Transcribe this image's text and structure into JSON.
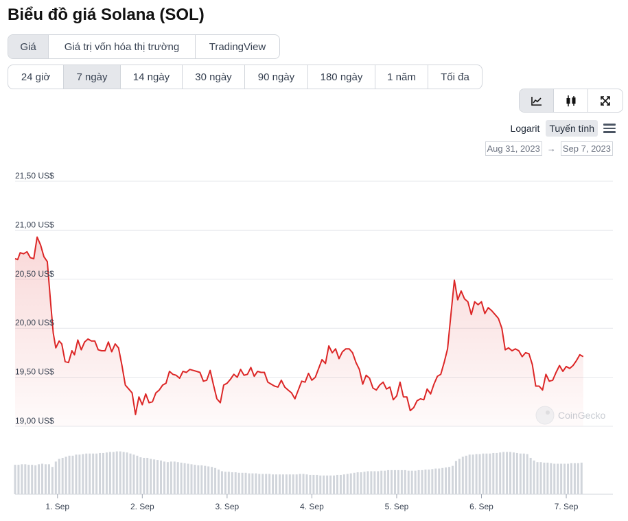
{
  "page": {
    "title": "Biểu đồ giá Solana (SOL)"
  },
  "tabs": {
    "metric": [
      {
        "label": "Giá",
        "active": true
      },
      {
        "label": "Giá trị vốn hóa thị trường",
        "active": false
      },
      {
        "label": "TradingView",
        "active": false
      }
    ],
    "range": [
      {
        "label": "24 giờ",
        "active": false
      },
      {
        "label": "7 ngày",
        "active": true
      },
      {
        "label": "14 ngày",
        "active": false
      },
      {
        "label": "30 ngày",
        "active": false
      },
      {
        "label": "90 ngày",
        "active": false
      },
      {
        "label": "180 ngày",
        "active": false
      },
      {
        "label": "1 năm",
        "active": false
      },
      {
        "label": "Tối đa",
        "active": false
      }
    ],
    "view_icons": [
      "line-chart-icon",
      "candlestick-icon",
      "expand-icon"
    ]
  },
  "scale": {
    "log_label": "Logarit",
    "linear_label": "Tuyến tính",
    "active": "linear"
  },
  "date_range": {
    "from": "Aug 31, 2023",
    "arrow": "→",
    "to": "Sep 7, 2023"
  },
  "watermark": "CoinGecko",
  "colors": {
    "line": "#dc2626",
    "volume": "#d1d5db",
    "grid": "#e5e7eb",
    "active_bg": "#e5e7eb"
  },
  "chart_data": {
    "type": "area",
    "title": "",
    "xlabel": "",
    "ylabel": "",
    "ylim": [
      19.0,
      21.5
    ],
    "y_ticks": [
      21.5,
      21.0,
      20.5,
      20.0,
      19.5,
      19.0
    ],
    "y_tick_labels": [
      "21,50 US$",
      "21,00 US$",
      "20,50 US$",
      "20,00 US$",
      "19,50 US$",
      "19,00 US$"
    ],
    "x_ticks": [
      1,
      2,
      3,
      4,
      5,
      6,
      7
    ],
    "x_tick_labels": [
      "1. Sep",
      "2. Sep",
      "3. Sep",
      "4. Sep",
      "5. Sep",
      "6. Sep",
      "7. Sep"
    ],
    "x_range": [
      0.5,
      7.55
    ],
    "grid": true,
    "series": [
      {
        "values": [
          [
            0.5,
            20.71
          ],
          [
            0.53,
            20.7
          ],
          [
            0.56,
            20.77
          ],
          [
            0.6,
            20.76
          ],
          [
            0.64,
            20.78
          ],
          [
            0.68,
            20.72
          ],
          [
            0.72,
            20.71
          ],
          [
            0.76,
            20.93
          ],
          [
            0.8,
            20.85
          ],
          [
            0.84,
            20.73
          ],
          [
            0.88,
            20.68
          ],
          [
            0.92,
            20.25
          ],
          [
            0.95,
            19.95
          ],
          [
            0.98,
            19.8
          ],
          [
            1.02,
            19.87
          ],
          [
            1.05,
            19.84
          ],
          [
            1.09,
            19.66
          ],
          [
            1.13,
            19.65
          ],
          [
            1.17,
            19.77
          ],
          [
            1.2,
            19.73
          ],
          [
            1.24,
            19.88
          ],
          [
            1.28,
            19.78
          ],
          [
            1.32,
            19.86
          ],
          [
            1.36,
            19.89
          ],
          [
            1.4,
            19.87
          ],
          [
            1.44,
            19.87
          ],
          [
            1.48,
            19.78
          ],
          [
            1.52,
            19.77
          ],
          [
            1.56,
            19.77
          ],
          [
            1.6,
            19.86
          ],
          [
            1.64,
            19.76
          ],
          [
            1.68,
            19.84
          ],
          [
            1.72,
            19.8
          ],
          [
            1.76,
            19.62
          ],
          [
            1.8,
            19.42
          ],
          [
            1.84,
            19.38
          ],
          [
            1.88,
            19.34
          ],
          [
            1.92,
            19.12
          ],
          [
            1.96,
            19.3
          ],
          [
            2.0,
            19.22
          ],
          [
            2.04,
            19.33
          ],
          [
            2.08,
            19.24
          ],
          [
            2.12,
            19.25
          ],
          [
            2.16,
            19.34
          ],
          [
            2.2,
            19.37
          ],
          [
            2.24,
            19.42
          ],
          [
            2.28,
            19.44
          ],
          [
            2.32,
            19.56
          ],
          [
            2.36,
            19.53
          ],
          [
            2.4,
            19.52
          ],
          [
            2.44,
            19.49
          ],
          [
            2.48,
            19.56
          ],
          [
            2.52,
            19.55
          ],
          [
            2.56,
            19.58
          ],
          [
            2.6,
            19.57
          ],
          [
            2.64,
            19.56
          ],
          [
            2.68,
            19.55
          ],
          [
            2.72,
            19.46
          ],
          [
            2.76,
            19.47
          ],
          [
            2.8,
            19.57
          ],
          [
            2.84,
            19.42
          ],
          [
            2.88,
            19.28
          ],
          [
            2.92,
            19.24
          ],
          [
            2.96,
            19.42
          ],
          [
            3.0,
            19.44
          ],
          [
            3.04,
            19.48
          ],
          [
            3.08,
            19.53
          ],
          [
            3.12,
            19.5
          ],
          [
            3.16,
            19.58
          ],
          [
            3.2,
            19.52
          ],
          [
            3.24,
            19.53
          ],
          [
            3.28,
            19.6
          ],
          [
            3.32,
            19.51
          ],
          [
            3.36,
            19.56
          ],
          [
            3.4,
            19.55
          ],
          [
            3.44,
            19.55
          ],
          [
            3.48,
            19.45
          ],
          [
            3.52,
            19.43
          ],
          [
            3.56,
            19.41
          ],
          [
            3.6,
            19.4
          ],
          [
            3.64,
            19.47
          ],
          [
            3.68,
            19.4
          ],
          [
            3.72,
            19.37
          ],
          [
            3.76,
            19.34
          ],
          [
            3.8,
            19.28
          ],
          [
            3.84,
            19.37
          ],
          [
            3.88,
            19.46
          ],
          [
            3.92,
            19.45
          ],
          [
            3.96,
            19.54
          ],
          [
            4.0,
            19.47
          ],
          [
            4.04,
            19.5
          ],
          [
            4.08,
            19.59
          ],
          [
            4.12,
            19.68
          ],
          [
            4.16,
            19.64
          ],
          [
            4.2,
            19.82
          ],
          [
            4.24,
            19.75
          ],
          [
            4.28,
            19.79
          ],
          [
            4.32,
            19.69
          ],
          [
            4.36,
            19.76
          ],
          [
            4.4,
            19.79
          ],
          [
            4.44,
            19.79
          ],
          [
            4.48,
            19.75
          ],
          [
            4.52,
            19.65
          ],
          [
            4.56,
            19.58
          ],
          [
            4.6,
            19.43
          ],
          [
            4.64,
            19.52
          ],
          [
            4.68,
            19.49
          ],
          [
            4.72,
            19.39
          ],
          [
            4.76,
            19.37
          ],
          [
            4.8,
            19.42
          ],
          [
            4.84,
            19.45
          ],
          [
            4.88,
            19.38
          ],
          [
            4.92,
            19.4
          ],
          [
            4.96,
            19.27
          ],
          [
            5.0,
            19.31
          ],
          [
            5.04,
            19.45
          ],
          [
            5.08,
            19.3
          ],
          [
            5.12,
            19.3
          ],
          [
            5.16,
            19.16
          ],
          [
            5.2,
            19.19
          ],
          [
            5.24,
            19.26
          ],
          [
            5.28,
            19.28
          ],
          [
            5.32,
            19.27
          ],
          [
            5.36,
            19.38
          ],
          [
            5.4,
            19.33
          ],
          [
            5.44,
            19.43
          ],
          [
            5.48,
            19.51
          ],
          [
            5.52,
            19.53
          ],
          [
            5.56,
            19.65
          ],
          [
            5.6,
            19.79
          ],
          [
            5.64,
            20.14
          ],
          [
            5.68,
            20.49
          ],
          [
            5.72,
            20.29
          ],
          [
            5.76,
            20.38
          ],
          [
            5.8,
            20.3
          ],
          [
            5.84,
            20.27
          ],
          [
            5.88,
            20.14
          ],
          [
            5.92,
            20.27
          ],
          [
            5.96,
            20.24
          ],
          [
            6.0,
            20.27
          ],
          [
            6.04,
            20.15
          ],
          [
            6.08,
            20.21
          ],
          [
            6.12,
            20.18
          ],
          [
            6.16,
            20.14
          ],
          [
            6.2,
            20.1
          ],
          [
            6.24,
            20.0
          ],
          [
            6.28,
            19.78
          ],
          [
            6.32,
            19.8
          ],
          [
            6.36,
            19.77
          ],
          [
            6.4,
            19.79
          ],
          [
            6.44,
            19.77
          ],
          [
            6.48,
            19.71
          ],
          [
            6.52,
            19.75
          ],
          [
            6.56,
            19.74
          ],
          [
            6.6,
            19.63
          ],
          [
            6.64,
            19.41
          ],
          [
            6.68,
            19.41
          ],
          [
            6.72,
            19.37
          ],
          [
            6.76,
            19.53
          ],
          [
            6.8,
            19.46
          ],
          [
            6.84,
            19.47
          ],
          [
            6.88,
            19.55
          ],
          [
            6.92,
            19.62
          ],
          [
            6.96,
            19.56
          ],
          [
            7.0,
            19.61
          ],
          [
            7.04,
            19.59
          ],
          [
            7.08,
            19.62
          ],
          [
            7.12,
            19.67
          ],
          [
            7.16,
            19.73
          ],
          [
            7.2,
            19.71
          ]
        ]
      }
    ],
    "volume": {
      "x_start": 0.5,
      "step": 0.04,
      "values": [
        0.55,
        0.55,
        0.56,
        0.56,
        0.55,
        0.55,
        0.54,
        0.56,
        0.57,
        0.56,
        0.56,
        0.51,
        0.61,
        0.66,
        0.68,
        0.7,
        0.72,
        0.72,
        0.74,
        0.74,
        0.75,
        0.76,
        0.76,
        0.76,
        0.76,
        0.77,
        0.77,
        0.78,
        0.79,
        0.79,
        0.8,
        0.8,
        0.79,
        0.78,
        0.76,
        0.74,
        0.72,
        0.69,
        0.68,
        0.68,
        0.66,
        0.65,
        0.64,
        0.63,
        0.61,
        0.6,
        0.61,
        0.61,
        0.6,
        0.59,
        0.58,
        0.57,
        0.56,
        0.55,
        0.54,
        0.54,
        0.53,
        0.52,
        0.51,
        0.49,
        0.46,
        0.43,
        0.42,
        0.42,
        0.41,
        0.41,
        0.4,
        0.4,
        0.4,
        0.39,
        0.39,
        0.39,
        0.38,
        0.38,
        0.38,
        0.38,
        0.37,
        0.37,
        0.37,
        0.37,
        0.37,
        0.37,
        0.37,
        0.37,
        0.38,
        0.38,
        0.37,
        0.36,
        0.36,
        0.36,
        0.35,
        0.35,
        0.35,
        0.35,
        0.35,
        0.36,
        0.36,
        0.37,
        0.38,
        0.39,
        0.4,
        0.41,
        0.41,
        0.42,
        0.43,
        0.43,
        0.43,
        0.43,
        0.44,
        0.44,
        0.45,
        0.45,
        0.45,
        0.45,
        0.45,
        0.45,
        0.44,
        0.44,
        0.44,
        0.45,
        0.45,
        0.46,
        0.46,
        0.47,
        0.48,
        0.48,
        0.49,
        0.5,
        0.51,
        0.53,
        0.62,
        0.66,
        0.7,
        0.72,
        0.74,
        0.74,
        0.75,
        0.75,
        0.76,
        0.76,
        0.76,
        0.77,
        0.77,
        0.78,
        0.79,
        0.79,
        0.79,
        0.78,
        0.77,
        0.76,
        0.76,
        0.75,
        0.68,
        0.63,
        0.6,
        0.6,
        0.59,
        0.59,
        0.58,
        0.57,
        0.57,
        0.57,
        0.57,
        0.57,
        0.58,
        0.58,
        0.58,
        0.59
      ]
    }
  }
}
